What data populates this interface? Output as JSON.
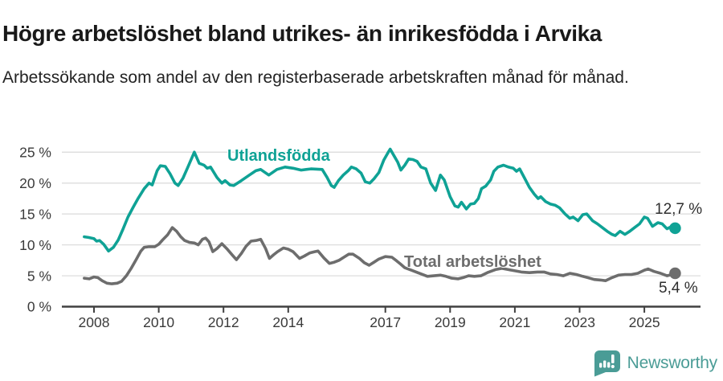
{
  "header": {
    "title": "Högre arbetslöshet bland utrikes- än inrikesfödda i Arvika",
    "subtitle": "Arbetssökande som andel av den registerbaserade arbetskraften månad för månad."
  },
  "footer": {
    "brand": "Newsworthy"
  },
  "colors": {
    "accent_teal": "#0fa295",
    "series_gray": "#6d6d6d",
    "logo_teal": "#4a9c96",
    "gridline": "#dddddd",
    "axis": "#404040"
  },
  "chart_data": {
    "type": "line",
    "title": "Högre arbetslöshet bland utrikes- än inrikesfödda i Arvika",
    "subtitle": "Arbetssökande som andel av den registerbaserade arbetskraften månad för månad.",
    "grid": true,
    "legend_position": "inline-labels-on-lines",
    "xlim": [
      2007.0,
      2026.7
    ],
    "ylim": [
      0,
      26.5
    ],
    "y_ticks": [
      0,
      5,
      10,
      15,
      20,
      25
    ],
    "y_tick_suffix": " %",
    "x_ticks": [
      2008,
      2010,
      2012,
      2014,
      2017,
      2019,
      2021,
      2023,
      2025
    ],
    "series": [
      {
        "name": "Utlandsfödda",
        "color": "#0fa295",
        "end_value_label": "12,7 %",
        "end_value": 12.7,
        "points": [
          [
            2007.7,
            11.3
          ],
          [
            2007.83,
            11.2
          ],
          [
            2008.0,
            11.0
          ],
          [
            2008.08,
            10.6
          ],
          [
            2008.17,
            10.7
          ],
          [
            2008.3,
            10.1
          ],
          [
            2008.45,
            9.0
          ],
          [
            2008.6,
            9.6
          ],
          [
            2008.75,
            10.8
          ],
          [
            2008.9,
            12.6
          ],
          [
            2009.05,
            14.5
          ],
          [
            2009.2,
            16.0
          ],
          [
            2009.35,
            17.4
          ],
          [
            2009.55,
            19.1
          ],
          [
            2009.7,
            20.0
          ],
          [
            2009.8,
            19.7
          ],
          [
            2009.95,
            22.0
          ],
          [
            2010.05,
            22.8
          ],
          [
            2010.2,
            22.7
          ],
          [
            2010.35,
            21.5
          ],
          [
            2010.5,
            20.0
          ],
          [
            2010.6,
            19.6
          ],
          [
            2010.75,
            20.8
          ],
          [
            2010.9,
            22.6
          ],
          [
            2011.1,
            25.0
          ],
          [
            2011.25,
            23.2
          ],
          [
            2011.4,
            22.9
          ],
          [
            2011.5,
            22.4
          ],
          [
            2011.6,
            22.6
          ],
          [
            2011.8,
            20.9
          ],
          [
            2011.95,
            20.0
          ],
          [
            2012.05,
            20.4
          ],
          [
            2012.2,
            19.7
          ],
          [
            2012.32,
            19.6
          ],
          [
            2012.55,
            20.4
          ],
          [
            2012.8,
            21.3
          ],
          [
            2013.0,
            22.0
          ],
          [
            2013.15,
            22.2
          ],
          [
            2013.4,
            21.3
          ],
          [
            2013.65,
            22.2
          ],
          [
            2013.9,
            22.6
          ],
          [
            2014.15,
            22.4
          ],
          [
            2014.4,
            22.1
          ],
          [
            2014.7,
            22.3
          ],
          [
            2015.05,
            22.2
          ],
          [
            2015.2,
            20.9
          ],
          [
            2015.33,
            19.6
          ],
          [
            2015.42,
            19.3
          ],
          [
            2015.55,
            20.4
          ],
          [
            2015.7,
            21.3
          ],
          [
            2015.85,
            22.0
          ],
          [
            2015.95,
            22.6
          ],
          [
            2016.1,
            22.3
          ],
          [
            2016.25,
            21.6
          ],
          [
            2016.38,
            20.2
          ],
          [
            2016.52,
            20.0
          ],
          [
            2016.65,
            20.7
          ],
          [
            2016.8,
            21.7
          ],
          [
            2016.95,
            23.7
          ],
          [
            2017.08,
            24.9
          ],
          [
            2017.15,
            25.5
          ],
          [
            2017.28,
            24.3
          ],
          [
            2017.38,
            23.4
          ],
          [
            2017.48,
            22.1
          ],
          [
            2017.6,
            22.9
          ],
          [
            2017.72,
            23.9
          ],
          [
            2017.85,
            23.8
          ],
          [
            2017.98,
            23.5
          ],
          [
            2018.1,
            22.6
          ],
          [
            2018.25,
            22.3
          ],
          [
            2018.4,
            20.0
          ],
          [
            2018.55,
            18.8
          ],
          [
            2018.7,
            21.3
          ],
          [
            2018.82,
            20.5
          ],
          [
            2019.0,
            17.8
          ],
          [
            2019.15,
            16.3
          ],
          [
            2019.25,
            16.1
          ],
          [
            2019.35,
            16.9
          ],
          [
            2019.5,
            15.8
          ],
          [
            2019.63,
            16.6
          ],
          [
            2019.75,
            16.7
          ],
          [
            2019.87,
            17.5
          ],
          [
            2019.97,
            19.1
          ],
          [
            2020.1,
            19.5
          ],
          [
            2020.25,
            20.5
          ],
          [
            2020.35,
            21.9
          ],
          [
            2020.48,
            22.6
          ],
          [
            2020.65,
            22.9
          ],
          [
            2020.8,
            22.6
          ],
          [
            2020.95,
            22.4
          ],
          [
            2021.05,
            21.9
          ],
          [
            2021.15,
            22.3
          ],
          [
            2021.3,
            20.8
          ],
          [
            2021.45,
            19.3
          ],
          [
            2021.6,
            18.2
          ],
          [
            2021.72,
            17.5
          ],
          [
            2021.8,
            17.8
          ],
          [
            2021.95,
            17.0
          ],
          [
            2022.1,
            16.6
          ],
          [
            2022.25,
            16.4
          ],
          [
            2022.38,
            16.0
          ],
          [
            2022.55,
            15.0
          ],
          [
            2022.7,
            14.3
          ],
          [
            2022.8,
            14.5
          ],
          [
            2022.95,
            13.9
          ],
          [
            2023.1,
            14.9
          ],
          [
            2023.22,
            15.0
          ],
          [
            2023.4,
            13.9
          ],
          [
            2023.55,
            13.4
          ],
          [
            2023.7,
            12.8
          ],
          [
            2023.85,
            12.2
          ],
          [
            2024.0,
            11.7
          ],
          [
            2024.1,
            11.5
          ],
          [
            2024.25,
            12.2
          ],
          [
            2024.4,
            11.7
          ],
          [
            2024.55,
            12.2
          ],
          [
            2024.7,
            12.8
          ],
          [
            2024.85,
            13.4
          ],
          [
            2025.0,
            14.5
          ],
          [
            2025.1,
            14.3
          ],
          [
            2025.25,
            13.0
          ],
          [
            2025.42,
            13.6
          ],
          [
            2025.55,
            13.4
          ],
          [
            2025.7,
            12.6
          ],
          [
            2025.82,
            12.9
          ],
          [
            2025.95,
            12.7
          ]
        ]
      },
      {
        "name": "Total arbetslöshet",
        "color": "#6d6d6d",
        "end_value_label": "5,4 %",
        "end_value": 5.4,
        "points": [
          [
            2007.7,
            4.6
          ],
          [
            2007.85,
            4.5
          ],
          [
            2008.0,
            4.8
          ],
          [
            2008.12,
            4.7
          ],
          [
            2008.25,
            4.2
          ],
          [
            2008.4,
            3.8
          ],
          [
            2008.55,
            3.7
          ],
          [
            2008.72,
            3.8
          ],
          [
            2008.85,
            4.1
          ],
          [
            2009.0,
            5.0
          ],
          [
            2009.15,
            6.2
          ],
          [
            2009.3,
            7.6
          ],
          [
            2009.45,
            9.0
          ],
          [
            2009.55,
            9.6
          ],
          [
            2009.7,
            9.7
          ],
          [
            2009.88,
            9.7
          ],
          [
            2010.0,
            10.1
          ],
          [
            2010.12,
            10.8
          ],
          [
            2010.27,
            11.6
          ],
          [
            2010.42,
            12.8
          ],
          [
            2010.55,
            12.2
          ],
          [
            2010.68,
            11.3
          ],
          [
            2010.8,
            10.7
          ],
          [
            2010.95,
            10.4
          ],
          [
            2011.1,
            10.3
          ],
          [
            2011.22,
            10.0
          ],
          [
            2011.35,
            10.9
          ],
          [
            2011.45,
            11.1
          ],
          [
            2011.55,
            10.5
          ],
          [
            2011.67,
            8.9
          ],
          [
            2011.8,
            9.4
          ],
          [
            2011.95,
            10.2
          ],
          [
            2012.1,
            9.4
          ],
          [
            2012.28,
            8.3
          ],
          [
            2012.4,
            7.6
          ],
          [
            2012.55,
            8.6
          ],
          [
            2012.7,
            9.8
          ],
          [
            2012.85,
            10.6
          ],
          [
            2013.0,
            10.7
          ],
          [
            2013.15,
            10.9
          ],
          [
            2013.3,
            9.4
          ],
          [
            2013.42,
            7.8
          ],
          [
            2013.55,
            8.4
          ],
          [
            2013.67,
            8.9
          ],
          [
            2013.85,
            9.5
          ],
          [
            2014.0,
            9.3
          ],
          [
            2014.15,
            8.9
          ],
          [
            2014.35,
            7.8
          ],
          [
            2014.5,
            8.2
          ],
          [
            2014.67,
            8.7
          ],
          [
            2014.82,
            8.9
          ],
          [
            2014.92,
            9.0
          ],
          [
            2015.1,
            7.9
          ],
          [
            2015.27,
            7.0
          ],
          [
            2015.42,
            7.2
          ],
          [
            2015.57,
            7.5
          ],
          [
            2015.72,
            8.0
          ],
          [
            2015.87,
            8.5
          ],
          [
            2016.0,
            8.5
          ],
          [
            2016.2,
            7.8
          ],
          [
            2016.35,
            7.1
          ],
          [
            2016.5,
            6.7
          ],
          [
            2016.65,
            7.2
          ],
          [
            2016.8,
            7.7
          ],
          [
            2017.0,
            8.1
          ],
          [
            2017.2,
            8.0
          ],
          [
            2017.35,
            7.4
          ],
          [
            2017.47,
            6.9
          ],
          [
            2017.6,
            6.3
          ],
          [
            2017.8,
            5.9
          ],
          [
            2018.0,
            5.5
          ],
          [
            2018.3,
            4.9
          ],
          [
            2018.5,
            5.0
          ],
          [
            2018.7,
            5.1
          ],
          [
            2018.87,
            4.9
          ],
          [
            2019.05,
            4.6
          ],
          [
            2019.25,
            4.5
          ],
          [
            2019.4,
            4.7
          ],
          [
            2019.57,
            5.0
          ],
          [
            2019.75,
            4.9
          ],
          [
            2019.95,
            5.0
          ],
          [
            2020.15,
            5.5
          ],
          [
            2020.4,
            6.0
          ],
          [
            2020.6,
            6.2
          ],
          [
            2020.8,
            6.0
          ],
          [
            2021.0,
            5.8
          ],
          [
            2021.2,
            5.6
          ],
          [
            2021.45,
            5.5
          ],
          [
            2021.7,
            5.6
          ],
          [
            2021.9,
            5.6
          ],
          [
            2022.1,
            5.3
          ],
          [
            2022.3,
            5.2
          ],
          [
            2022.5,
            5.0
          ],
          [
            2022.7,
            5.4
          ],
          [
            2022.9,
            5.2
          ],
          [
            2023.1,
            4.9
          ],
          [
            2023.25,
            4.7
          ],
          [
            2023.45,
            4.4
          ],
          [
            2023.65,
            4.3
          ],
          [
            2023.8,
            4.2
          ],
          [
            2024.0,
            4.7
          ],
          [
            2024.2,
            5.1
          ],
          [
            2024.4,
            5.2
          ],
          [
            2024.6,
            5.2
          ],
          [
            2024.8,
            5.4
          ],
          [
            2025.0,
            5.9
          ],
          [
            2025.12,
            6.1
          ],
          [
            2025.3,
            5.7
          ],
          [
            2025.5,
            5.4
          ],
          [
            2025.7,
            5.0
          ],
          [
            2025.85,
            5.2
          ],
          [
            2025.95,
            5.4
          ]
        ]
      }
    ]
  }
}
